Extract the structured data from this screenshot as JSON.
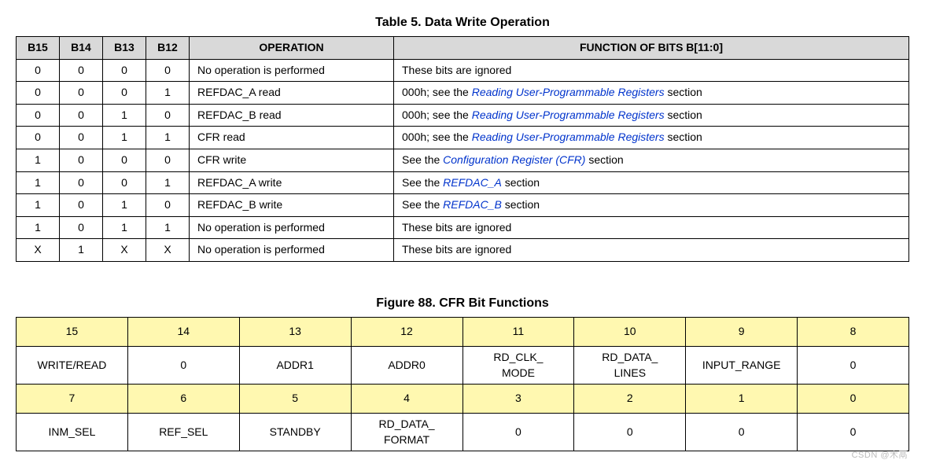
{
  "table5": {
    "title": "Table 5. Data Write Operation",
    "headers": [
      "B15",
      "B14",
      "B13",
      "B12",
      "OPERATION",
      "FUNCTION OF BITS B[11:0]"
    ],
    "rows": [
      {
        "b15": "0",
        "b14": "0",
        "b13": "0",
        "b12": "0",
        "op": "No operation is performed",
        "fun_pre": "These bits are ignored",
        "fun_link": "",
        "fun_post": ""
      },
      {
        "b15": "0",
        "b14": "0",
        "b13": "0",
        "b12": "1",
        "op": "REFDAC_A read",
        "fun_pre": "000h; see the ",
        "fun_link": "Reading User-Programmable Registers",
        "fun_post": " section"
      },
      {
        "b15": "0",
        "b14": "0",
        "b13": "1",
        "b12": "0",
        "op": "REFDAC_B read",
        "fun_pre": "000h; see the ",
        "fun_link": "Reading User-Programmable Registers",
        "fun_post": " section"
      },
      {
        "b15": "0",
        "b14": "0",
        "b13": "1",
        "b12": "1",
        "op": "CFR read",
        "fun_pre": "000h; see the ",
        "fun_link": "Reading User-Programmable Registers",
        "fun_post": " section"
      },
      {
        "b15": "1",
        "b14": "0",
        "b13": "0",
        "b12": "0",
        "op": "CFR write",
        "fun_pre": "See the ",
        "fun_link": "Configuration Register (CFR)",
        "fun_post": " section"
      },
      {
        "b15": "1",
        "b14": "0",
        "b13": "0",
        "b12": "1",
        "op": "REFDAC_A write",
        "fun_pre": "See the ",
        "fun_link": "REFDAC_A",
        "fun_post": " section"
      },
      {
        "b15": "1",
        "b14": "0",
        "b13": "1",
        "b12": "0",
        "op": "REFDAC_B write",
        "fun_pre": "See the ",
        "fun_link": "REFDAC_B",
        "fun_post": " section"
      },
      {
        "b15": "1",
        "b14": "0",
        "b13": "1",
        "b12": "1",
        "op": "No operation is performed",
        "fun_pre": "These bits are ignored",
        "fun_link": "",
        "fun_post": ""
      },
      {
        "b15": "X",
        "b14": "1",
        "b13": "X",
        "b12": "X",
        "op": "No operation is performed",
        "fun_pre": "These bits are ignored",
        "fun_link": "",
        "fun_post": ""
      }
    ]
  },
  "figure88": {
    "title": "Figure 88.  CFR Bit Functions",
    "row1_nums": [
      "15",
      "14",
      "13",
      "12",
      "11",
      "10",
      "9",
      "8"
    ],
    "row1_names": [
      "WRITE/READ",
      "0",
      "ADDR1",
      "ADDR0",
      "RD_CLK_\nMODE",
      "RD_DATA_\nLINES",
      "INPUT_RANGE",
      "0"
    ],
    "row2_nums": [
      "7",
      "6",
      "5",
      "4",
      "3",
      "2",
      "1",
      "0"
    ],
    "row2_names": [
      "INM_SEL",
      "REF_SEL",
      "STANDBY",
      "RD_DATA_\nFORMAT",
      "0",
      "0",
      "0",
      "0"
    ]
  },
  "colors": {
    "header_bg": "#d9d9d9",
    "highlight_bg": "#fff8b0",
    "link_color": "#0033cc",
    "border_color": "#000000",
    "background": "#ffffff"
  },
  "watermark": "CSDN @木鬲"
}
